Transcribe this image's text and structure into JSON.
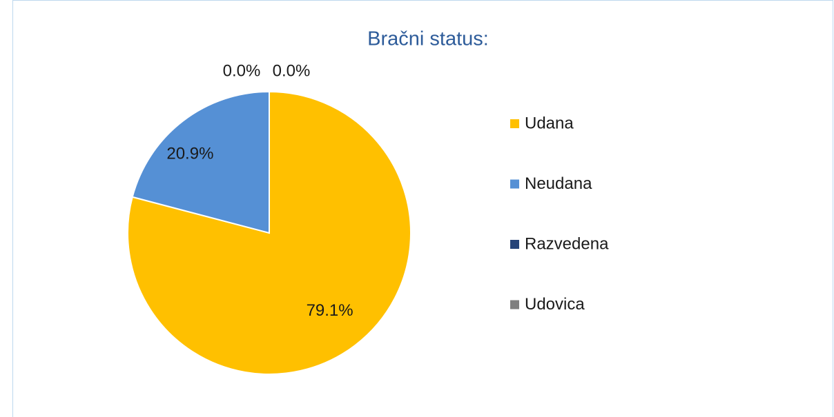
{
  "chart_data": {
    "type": "pie",
    "title": "Bračni status:",
    "categories": [
      "Udana",
      "Neudana",
      "Razvedena",
      "Udovica"
    ],
    "values": [
      79.1,
      20.9,
      0.0,
      0.0
    ],
    "value_labels": [
      "79.1%",
      "20.9%",
      "0.0%",
      "0.0%"
    ],
    "colors": [
      "#ffc000",
      "#5590d5",
      "#264478",
      "#7f7f7f"
    ],
    "legend": "right"
  }
}
